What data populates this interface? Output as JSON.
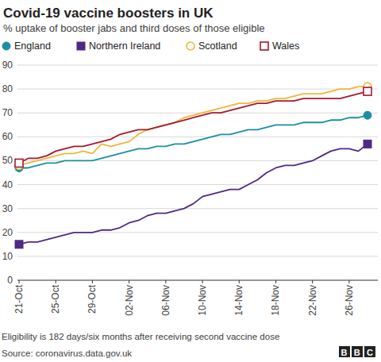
{
  "chart_data": {
    "type": "line",
    "title": "Covid-19 vaccine boosters in UK",
    "subtitle": "% uptake of booster jabs and third doses of those eligible",
    "footnote": "Eligibility is 182 days/six months after receiving second vaccine dose",
    "source": "Source: coronavirus.data.gov.uk",
    "logo": "BBC",
    "categories": [
      "21-Oct",
      null,
      null,
      null,
      "25-Oct",
      null,
      null,
      null,
      "29-Oct",
      null,
      null,
      null,
      "02-Nov",
      null,
      null,
      null,
      "06-Nov",
      null,
      null,
      null,
      "10-Nov",
      null,
      null,
      null,
      "14-Nov",
      null,
      null,
      null,
      "18-Nov",
      null,
      null,
      null,
      "22-Nov",
      null,
      null,
      null,
      "26-Nov",
      null,
      null
    ],
    "series": [
      {
        "name": "England",
        "color": "#1a8fa3",
        "marker": "circle",
        "values": [
          47,
          47,
          48,
          49,
          49,
          50,
          50,
          50,
          50,
          51,
          52,
          53,
          54,
          55,
          55,
          56,
          56,
          57,
          57,
          58,
          59,
          60,
          61,
          61,
          62,
          63,
          63,
          64,
          65,
          65,
          65,
          66,
          66,
          66,
          67,
          67,
          68,
          68,
          69
        ]
      },
      {
        "name": "Northern Ireland",
        "color": "#4e2a84",
        "marker": "square",
        "values": [
          15,
          16,
          16,
          17,
          18,
          19,
          20,
          20,
          20,
          21,
          21,
          22,
          24,
          25,
          27,
          28,
          28,
          29,
          30,
          32,
          35,
          36,
          37,
          38,
          38,
          40,
          42,
          45,
          47,
          48,
          48,
          49,
          50,
          52,
          54,
          55,
          55,
          54,
          57
        ]
      },
      {
        "name": "Scotland",
        "color": "#f2b53a",
        "marker": "circle-open",
        "values": [
          48,
          49,
          50,
          51,
          52,
          53,
          53,
          54,
          53,
          57,
          56,
          57,
          58,
          61,
          63,
          64,
          65,
          66,
          68,
          69,
          70,
          71,
          72,
          73,
          74,
          74,
          75,
          75,
          76,
          76,
          77,
          78,
          78,
          78,
          79,
          80,
          80,
          81,
          81
        ]
      },
      {
        "name": "Wales",
        "color": "#a6192e",
        "marker": "square-open",
        "values": [
          49,
          51,
          51,
          52,
          54,
          55,
          56,
          56,
          57,
          58,
          59,
          61,
          62,
          63,
          63,
          64,
          65,
          66,
          67,
          68,
          69,
          70,
          70,
          71,
          72,
          73,
          74,
          74,
          75,
          75,
          75,
          76,
          76,
          76,
          76,
          76,
          77,
          78,
          79
        ]
      }
    ],
    "ylim": [
      0,
      90
    ],
    "yticks": [
      0,
      10,
      20,
      30,
      40,
      50,
      60,
      70,
      80,
      90
    ],
    "grid": true,
    "legend": "top"
  }
}
